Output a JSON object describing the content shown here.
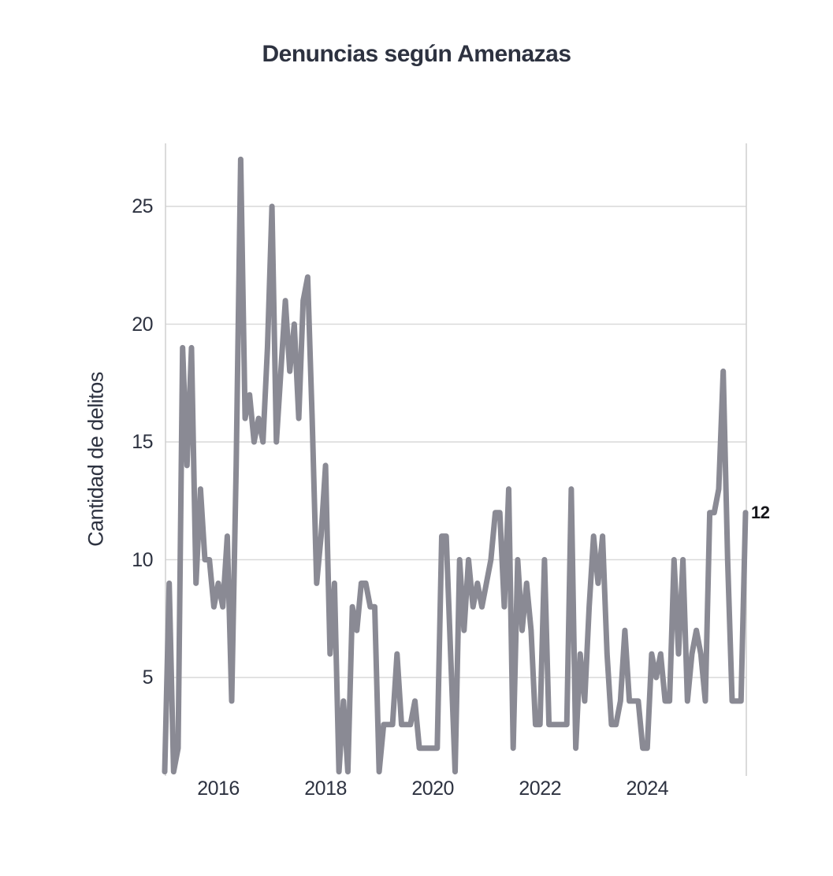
{
  "title": "Denuncias según Amenazas",
  "y_axis_label": "Cantidad de delitos",
  "end_annotation": "12",
  "style": {
    "line_color": "#8a8a94",
    "grid_color": "#d9d9d9",
    "spine_color": "#cfcfcf",
    "text_color": "#2d3240",
    "annotation_color": "#16161a",
    "background": "#ffffff"
  },
  "chart_data": {
    "type": "line",
    "title": "Denuncias según Amenazas",
    "xlabel": "",
    "ylabel": "Cantidad de delitos",
    "x_start": "2015-01",
    "frequency": "monthly",
    "x_tick_years": [
      2016,
      2018,
      2020,
      2022,
      2024
    ],
    "y_ticks": [
      5,
      10,
      15,
      20,
      25
    ],
    "ylim": [
      0.8,
      27.7
    ],
    "grid": "horizontal",
    "legend": "none",
    "last_point_label": "12",
    "values": [
      1,
      9,
      1,
      2,
      19,
      14,
      19,
      9,
      13,
      10,
      10,
      8,
      9,
      8,
      11,
      4,
      14,
      27,
      16,
      17,
      15,
      16,
      15,
      19,
      25,
      15,
      18,
      21,
      18,
      20,
      16,
      21,
      22,
      16,
      9,
      11,
      14,
      6,
      9,
      1,
      4,
      1,
      8,
      7,
      9,
      9,
      8,
      8,
      1,
      3,
      3,
      3,
      6,
      3,
      3,
      3,
      4,
      2,
      2,
      2,
      2,
      2,
      11,
      11,
      6,
      1,
      10,
      7,
      10,
      8,
      9,
      8,
      9,
      10,
      12,
      12,
      8,
      13,
      2,
      10,
      7,
      9,
      7,
      3,
      3,
      10,
      3,
      3,
      3,
      3,
      3,
      13,
      2,
      6,
      4,
      8,
      11,
      9,
      11,
      6,
      3,
      3,
      4,
      7,
      4,
      4,
      4,
      2,
      2,
      6,
      5,
      6,
      4,
      4,
      10,
      6,
      10,
      4,
      6,
      7,
      6,
      4,
      12,
      12,
      13,
      18,
      10,
      4,
      4,
      4,
      12
    ]
  }
}
